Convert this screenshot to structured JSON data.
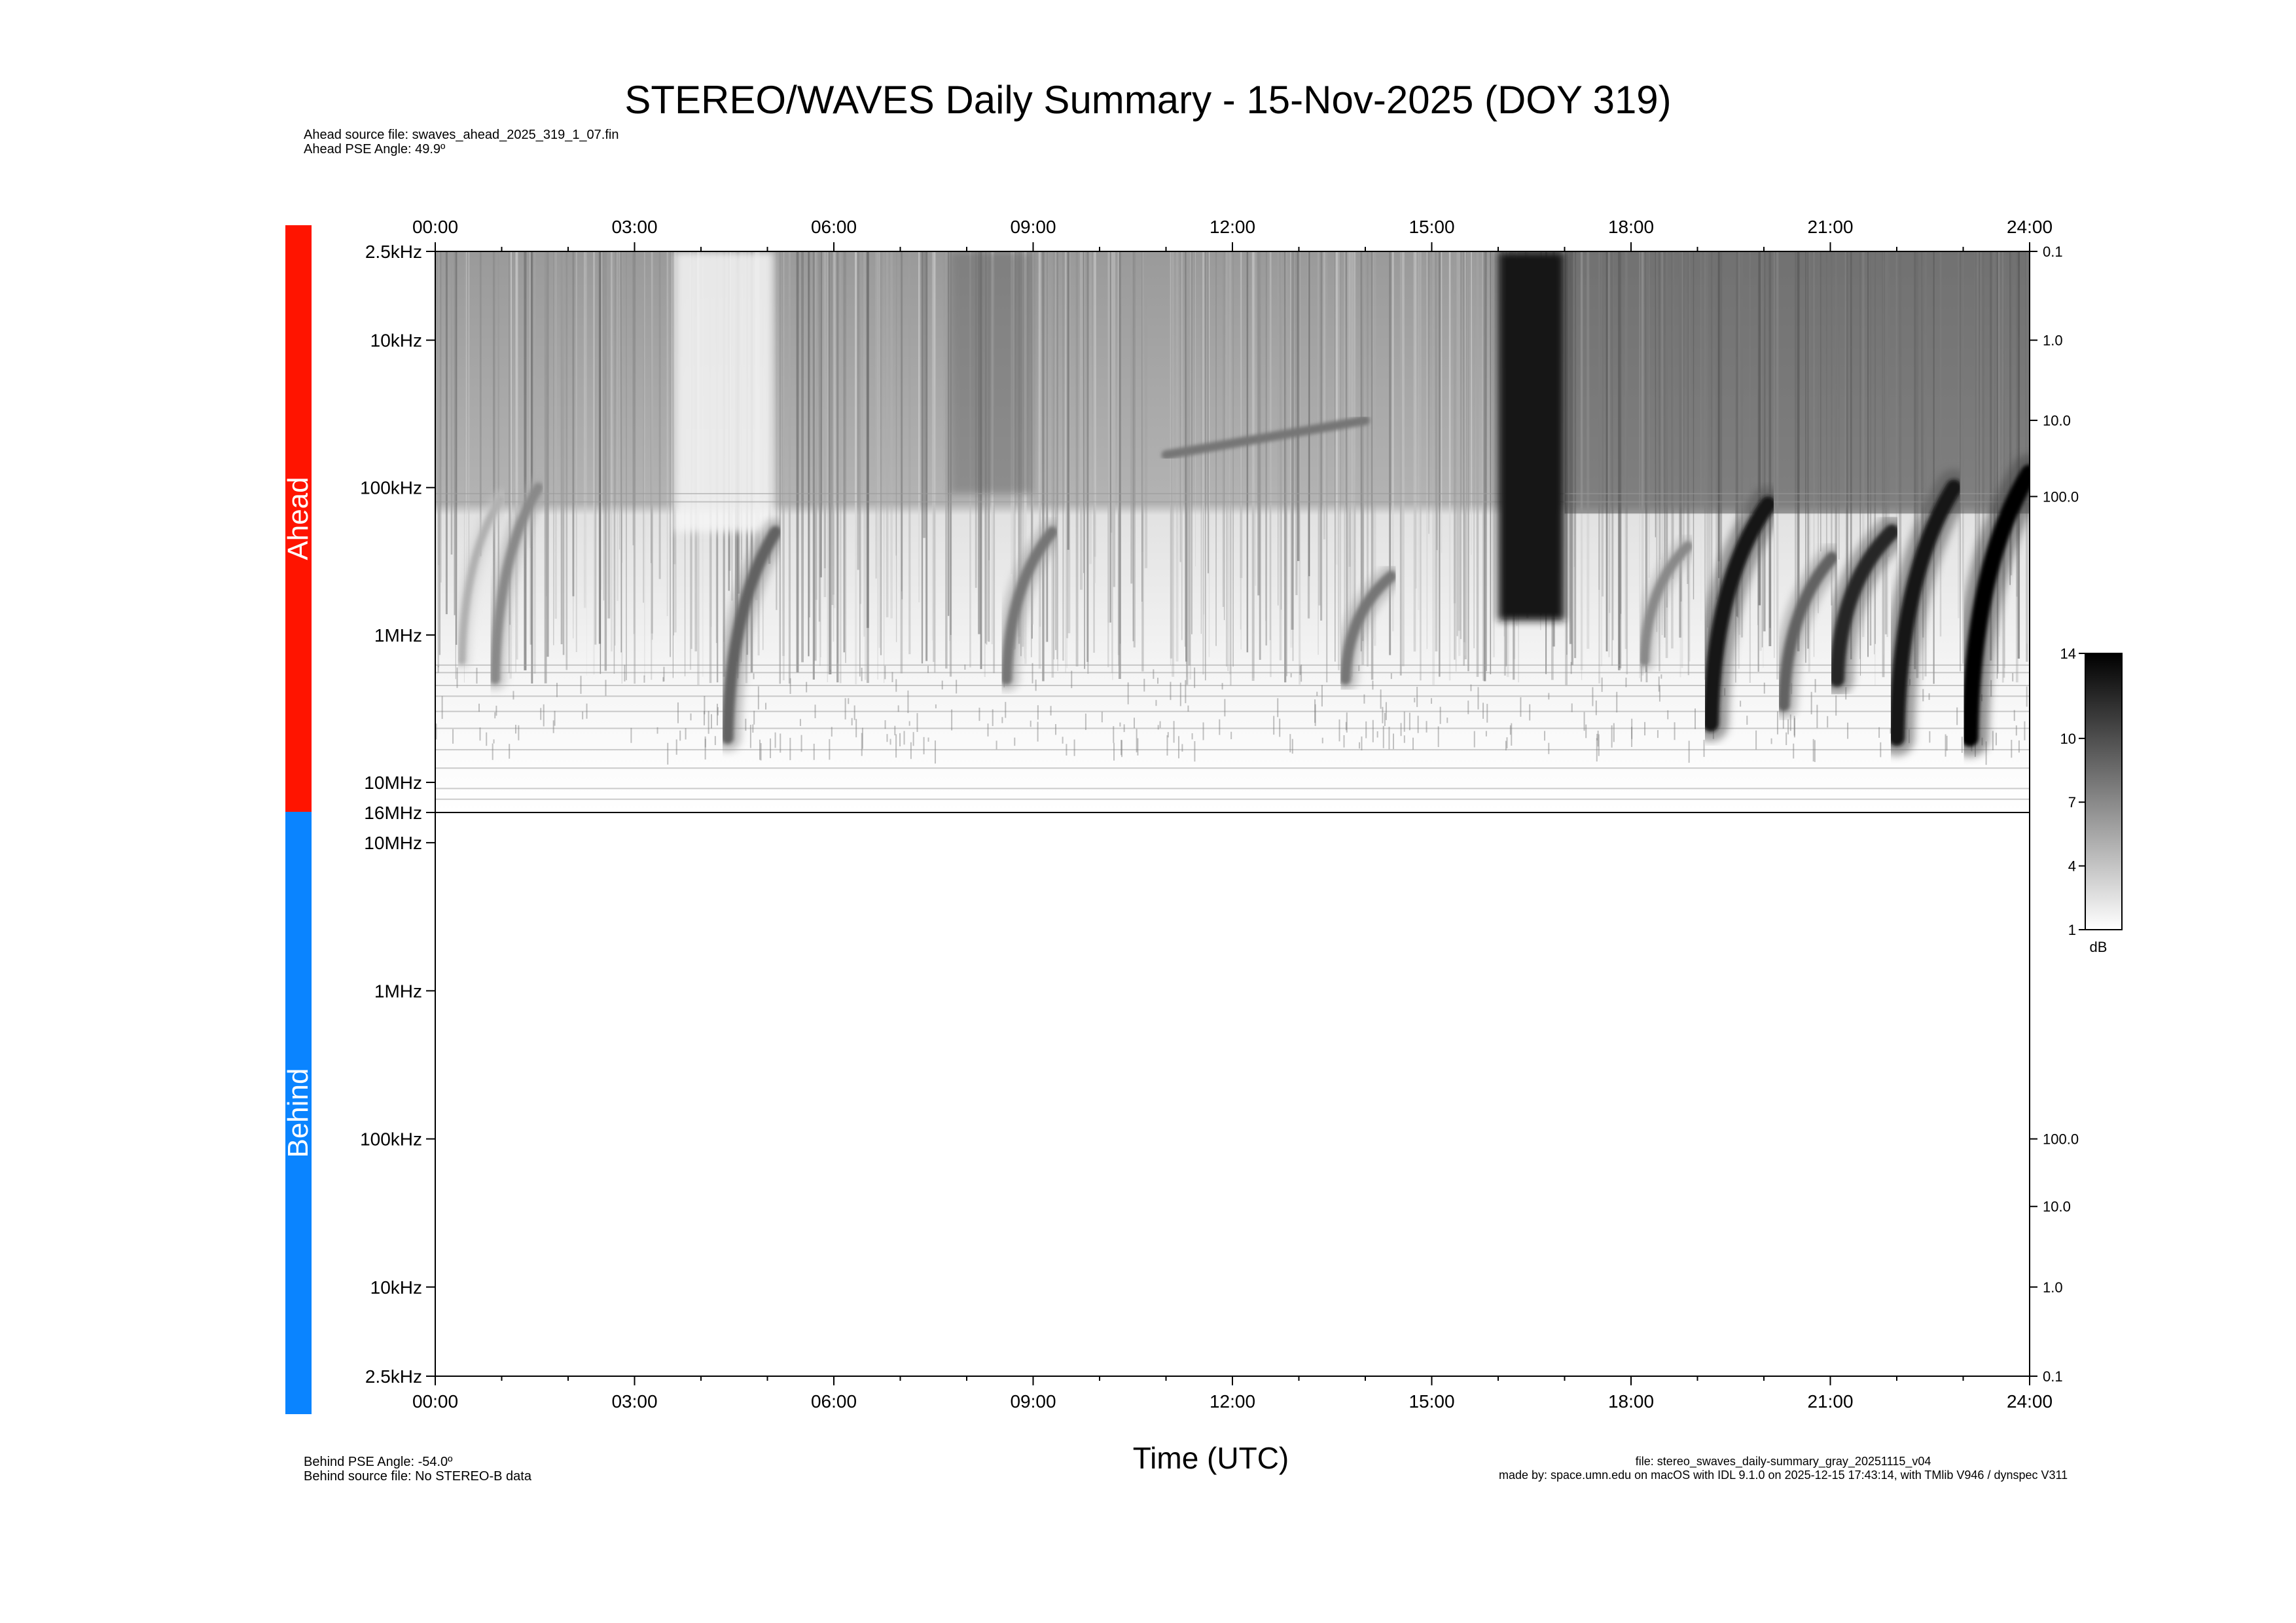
{
  "title": "STEREO/WAVES Daily Summary - 15-Nov-2025 (DOY 319)",
  "ahead_info": {
    "source_file": "Ahead source file: swaves_ahead_2025_319_1_07.fin",
    "pse_angle": "Ahead PSE Angle:   49.9º"
  },
  "behind_info": {
    "pse_angle": "Behind PSE Angle:  -54.0º",
    "source_file": "Behind source file: No STEREO-B data"
  },
  "file_info": {
    "file": "file: stereo_swaves_daily-summary_gray_20251115_v04",
    "made_by": "made by: space.umn.edu on macOS with IDL 9.1.0 on 2025-12-15 17:43:14, with TMlib V946 / dynspec V311"
  },
  "side_bars": {
    "ahead": {
      "label": "Ahead",
      "color": "#ff1400"
    },
    "behind": {
      "label": "Behind",
      "color": "#0a84ff"
    }
  },
  "chart_data": {
    "type": "heatmap",
    "title": "STEREO/WAVES Daily Summary - 15-Nov-2025 (DOY 319)",
    "xlabel": "Time (UTC)",
    "x_range_hours": [
      0,
      24
    ],
    "x_ticks": [
      "00:00",
      "03:00",
      "06:00",
      "09:00",
      "12:00",
      "15:00",
      "18:00",
      "21:00",
      "24:00"
    ],
    "colormap": "gray_reversed",
    "colorbar": {
      "unit": "dB",
      "range": [
        1,
        14
      ],
      "ticks": [
        1,
        4,
        7,
        10,
        14
      ]
    },
    "panels": [
      {
        "name": "Ahead",
        "y_scale": "log",
        "y_range_hz": [
          2500,
          16000000
        ],
        "y_direction": "frequency increases downward",
        "y_ticks": [
          {
            "hz": 2500,
            "label": "2.5kHz"
          },
          {
            "hz": 10000,
            "label": "10kHz"
          },
          {
            "hz": 100000,
            "label": "100kHz"
          },
          {
            "hz": 1000000,
            "label": "1MHz"
          },
          {
            "hz": 10000000,
            "label": "10MHz"
          },
          {
            "hz": 16000000,
            "label": "16MHz"
          }
        ],
        "right_ticks": [
          {
            "hz": 2500,
            "label": "0.1"
          },
          {
            "hz": 10000,
            "label": "1.0"
          },
          {
            "hz": 35000,
            "label": "10.0"
          },
          {
            "hz": 115000,
            "label": "100.0"
          }
        ],
        "events": [
          {
            "kind": "type_iii",
            "t": 0.4,
            "f_top": 120000,
            "f_bottom": 1500000,
            "intensity": 5
          },
          {
            "kind": "type_iii",
            "t": 0.9,
            "f_top": 100000,
            "f_bottom": 2000000,
            "intensity": 7
          },
          {
            "kind": "type_iii",
            "t": 4.4,
            "f_top": 200000,
            "f_bottom": 5000000,
            "intensity": 9
          },
          {
            "kind": "type_iii",
            "t": 8.6,
            "f_top": 200000,
            "f_bottom": 2000000,
            "intensity": 8
          },
          {
            "kind": "type_iii",
            "t": 13.7,
            "f_top": 400000,
            "f_bottom": 2000000,
            "intensity": 8
          },
          {
            "kind": "type_iii",
            "t": 18.2,
            "f_top": 250000,
            "f_bottom": 1500000,
            "intensity": 7
          },
          {
            "kind": "type_iii",
            "t": 19.2,
            "f_top": 130000,
            "f_bottom": 4000000,
            "intensity": 13
          },
          {
            "kind": "type_iii",
            "t": 20.3,
            "f_top": 300000,
            "f_bottom": 3000000,
            "intensity": 9
          },
          {
            "kind": "type_iii",
            "t": 21.1,
            "f_top": 200000,
            "f_bottom": 2000000,
            "intensity": 12
          },
          {
            "kind": "type_iii",
            "t": 22.0,
            "f_top": 100000,
            "f_bottom": 5000000,
            "intensity": 13
          },
          {
            "kind": "type_iii",
            "t": 23.1,
            "f_top": 80000,
            "f_bottom": 5000000,
            "intensity": 14
          },
          {
            "kind": "broadband",
            "t_start": 16.0,
            "t_end": 17.0,
            "f_top": 2500,
            "f_bottom": 800000,
            "intensity": 13
          },
          {
            "kind": "drifting_band",
            "t_start": 11.0,
            "t_end": 14.0,
            "f_start": 60000,
            "f_end": 35000,
            "intensity": 8
          }
        ]
      },
      {
        "name": "Behind",
        "y_scale": "log",
        "y_range_hz": [
          16000000,
          2500
        ],
        "y_direction": "frequency decreases downward",
        "y_ticks": [
          {
            "hz": 10000000,
            "label": "10MHz"
          },
          {
            "hz": 1000000,
            "label": "1MHz"
          },
          {
            "hz": 100000,
            "label": "100kHz"
          },
          {
            "hz": 10000,
            "label": "10kHz"
          },
          {
            "hz": 2500,
            "label": "2.5kHz"
          }
        ],
        "right_ticks": [
          {
            "hz": 100000,
            "label": "100.0"
          },
          {
            "hz": 35000,
            "label": "10.0"
          },
          {
            "hz": 10000,
            "label": "1.0"
          },
          {
            "hz": 2500,
            "label": "0.1"
          }
        ],
        "data": "No STEREO-B data"
      }
    ]
  }
}
